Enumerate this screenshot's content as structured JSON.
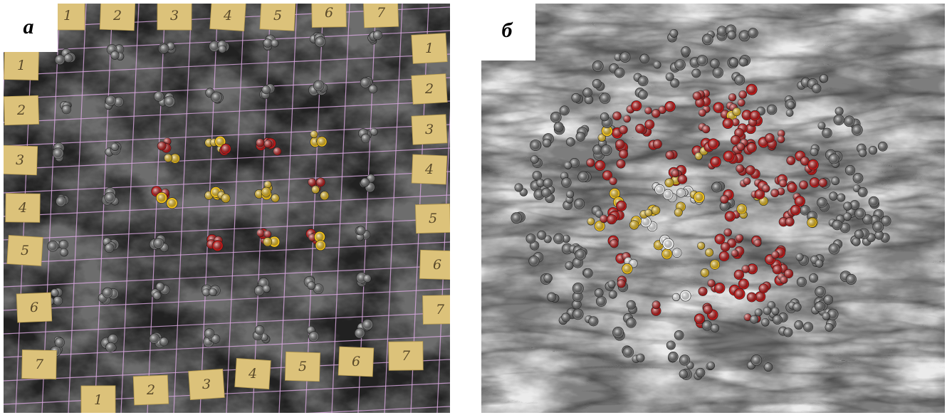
{
  "panels": [
    {
      "label": "а",
      "notes": {
        "top": [
          "1",
          "2",
          "3",
          "4",
          "5",
          "6",
          "7"
        ],
        "right": [
          "1",
          "2",
          "3",
          "4",
          "5",
          "6",
          "7"
        ],
        "left": [
          "1",
          "2",
          "3",
          "4",
          "5",
          "6",
          "7"
        ],
        "bottom": [
          "1",
          "2",
          "3",
          "4",
          "5",
          "6",
          "7"
        ]
      }
    },
    {
      "label": "б"
    }
  ]
}
